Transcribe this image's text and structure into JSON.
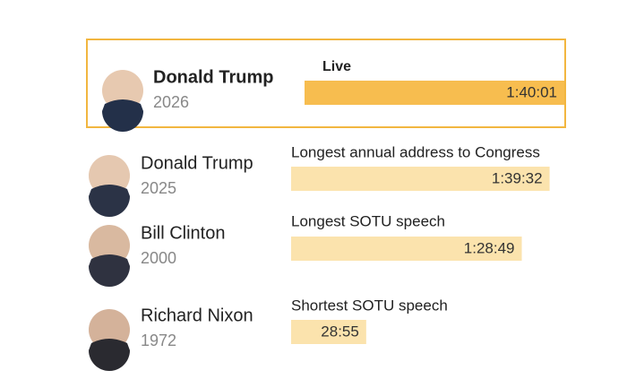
{
  "chart_data": {
    "type": "bar",
    "categories": [
      "Donald Trump",
      "Donald Trump",
      "Bill Clinton",
      "Richard Nixon"
    ],
    "years": [
      "2026",
      "2025",
      "2000",
      "1972"
    ],
    "captions": [
      "Live",
      "Longest annual address to Congress",
      "Longest SOTU speech",
      "Shortest SOTU speech"
    ],
    "values": [
      6001,
      5972,
      5329,
      1735
    ],
    "value_labels": [
      "1:40:01",
      "1:39:32",
      "1:28:49",
      "28:55"
    ],
    "colors": [
      "#f7bd4f",
      "#fbe3ad",
      "#fbe3ad",
      "#fbe3ad"
    ]
  }
}
